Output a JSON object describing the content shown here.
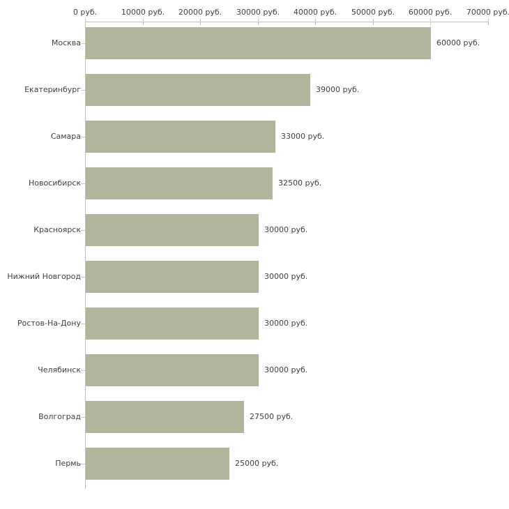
{
  "chart_data": {
    "type": "bar",
    "orientation": "horizontal",
    "title": "",
    "xlabel": "",
    "ylabel": "",
    "xlim": [
      0,
      70000
    ],
    "grid": false,
    "legend": null,
    "categories": [
      "Москва",
      "Екатеринбург",
      "Самара",
      "Новосибирск",
      "Красноярск",
      "Нижний Новгород",
      "Ростов-На-Дону",
      "Челябинск",
      "Волгоград",
      "Пермь"
    ],
    "values": [
      60000,
      39000,
      33000,
      32500,
      30000,
      30000,
      30000,
      30000,
      27500,
      25000
    ],
    "value_labels": [
      "60000 руб.",
      "39000 руб.",
      "33000 руб.",
      "32500 руб.",
      "30000 руб.",
      "30000 руб.",
      "30000 руб.",
      "30000 руб.",
      "27500 руб.",
      "25000 руб."
    ],
    "x_ticks": [
      0,
      10000,
      20000,
      30000,
      40000,
      50000,
      60000,
      70000
    ],
    "x_tick_labels": [
      "0 руб.",
      "10000 руб.",
      "20000 руб.",
      "30000 руб.",
      "40000 руб.",
      "50000 руб.",
      "60000 руб.",
      "70000 руб."
    ],
    "colors": {
      "bar": "#b0b59c",
      "axis_line": "#c0c0c0",
      "tick_mark": "#c9c9a3",
      "text": "#3f3f3f",
      "background": "#ffffff"
    }
  }
}
